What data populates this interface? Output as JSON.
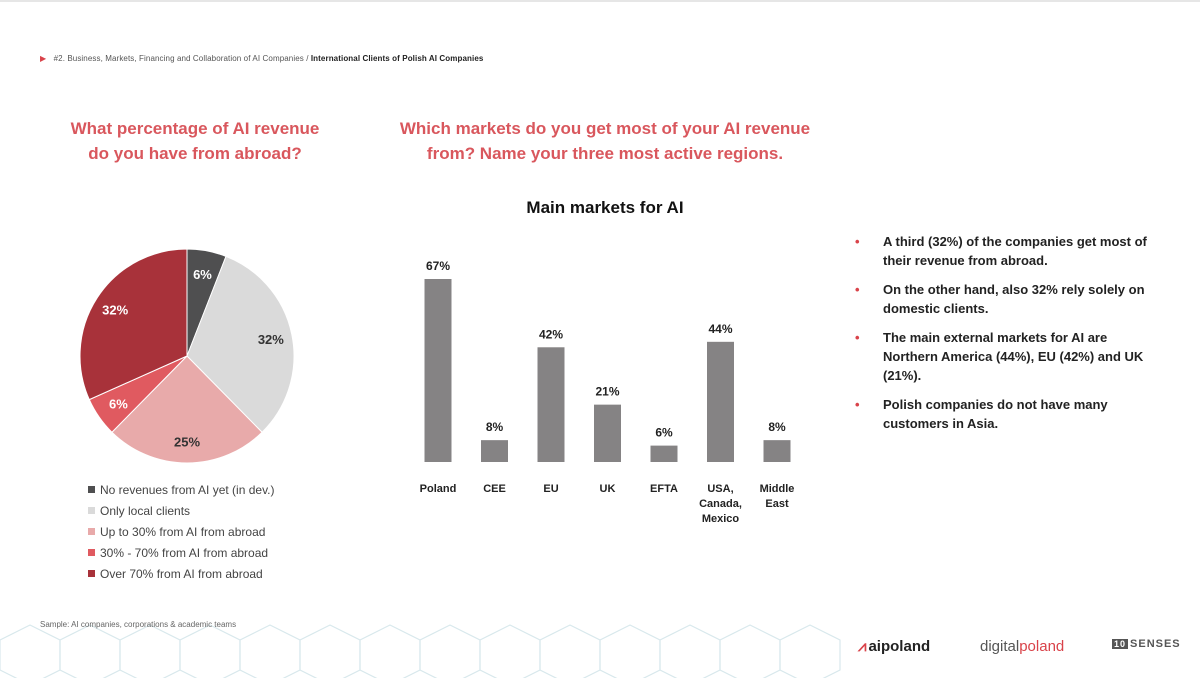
{
  "breadcrumb": {
    "section": "#2. Business, Markets, Financing and Collaboration of AI Companies /",
    "current": "International Clients of Polish AI Companies"
  },
  "question_left": {
    "line1": "What percentage of AI revenue",
    "line2": "do you have from abroad?"
  },
  "question_right": {
    "line1": "Which markets do you get most of your AI revenue",
    "line2": "from? Name your three most active regions."
  },
  "chart_data": [
    {
      "type": "pie",
      "title": "",
      "slices": [
        {
          "label": "No revenues from AI yet (in dev.)",
          "value": 6,
          "display": "6%",
          "color": "#4f4f50"
        },
        {
          "label": "Only local clients",
          "value": 32,
          "display": "32%",
          "color": "#dadada"
        },
        {
          "label": "Up to 30% from AI from abroad",
          "value": 25,
          "display": "25%",
          "color": "#e8aaaa"
        },
        {
          "label": "30% - 70% from AI from abroad",
          "value": 6,
          "display": "6%",
          "color": "#e05a60"
        },
        {
          "label": "Over 70% from AI from abroad",
          "value": 32,
          "display": "32%",
          "color": "#a8323a"
        }
      ]
    },
    {
      "type": "bar",
      "title": "Main markets for AI",
      "categories": [
        [
          "Poland"
        ],
        [
          "CEE"
        ],
        [
          "EU"
        ],
        [
          "UK"
        ],
        [
          "EFTA"
        ],
        [
          "USA,",
          "Canada,",
          "Mexico"
        ],
        [
          "Middle",
          "East"
        ]
      ],
      "values": [
        67,
        8,
        42,
        21,
        6,
        44,
        8
      ],
      "value_labels": [
        "67%",
        "8%",
        "42%",
        "21%",
        "6%",
        "44%",
        "8%"
      ],
      "bar_color": "#858384",
      "ylim": [
        0,
        70
      ]
    }
  ],
  "bullets": [
    "A third (32%) of the companies get most of their revenue from abroad.",
    "On the other hand, also 32% rely solely on domestic clients.",
    "The main external markets for AI are Northern America (44%), EU (42%) and UK (21%).",
    "Polish companies do not have many customers in Asia."
  ],
  "sample_note": "Sample: AI companies, corporations & academic teams",
  "logos": {
    "aipoland": "aipoland",
    "digitalpoland_a": "digital",
    "digitalpoland_b": "poland",
    "tensenses": "SENSES",
    "tensenses_box": "10"
  },
  "accent_color": "#d9434a"
}
